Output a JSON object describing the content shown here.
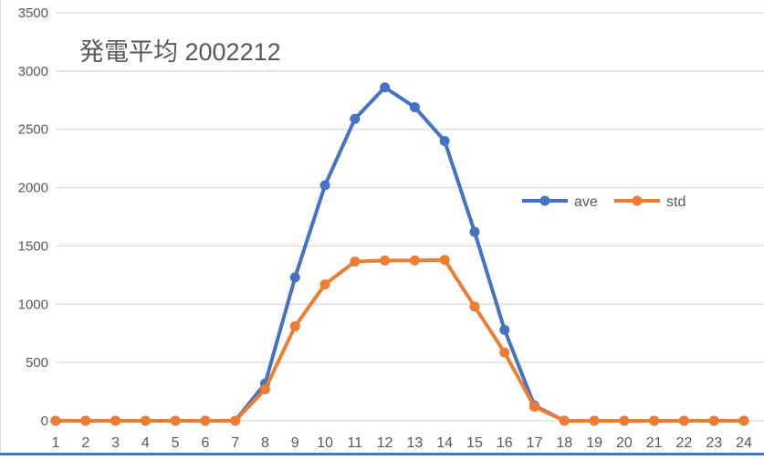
{
  "chart_data": {
    "type": "line",
    "title": "発電平均 2002212",
    "xlabel": "",
    "ylabel": "",
    "categories": [
      "1",
      "2",
      "3",
      "4",
      "5",
      "6",
      "7",
      "8",
      "9",
      "10",
      "11",
      "12",
      "13",
      "14",
      "15",
      "16",
      "17",
      "18",
      "19",
      "20",
      "21",
      "22",
      "23",
      "24"
    ],
    "series": [
      {
        "name": "ave",
        "color": "#4472c4",
        "values": [
          0,
          0,
          0,
          0,
          0,
          0,
          0,
          320,
          1230,
          2020,
          2590,
          2860,
          2690,
          2400,
          1620,
          780,
          130,
          0,
          0,
          0,
          0,
          0,
          0,
          0
        ]
      },
      {
        "name": "std",
        "color": "#ed7d31",
        "values": [
          0,
          0,
          0,
          0,
          0,
          0,
          0,
          270,
          810,
          1170,
          1365,
          1375,
          1375,
          1380,
          980,
          585,
          120,
          0,
          0,
          0,
          0,
          0,
          0,
          0
        ]
      }
    ],
    "ylim": [
      0,
      3500
    ],
    "yticks": [
      0,
      500,
      1000,
      1500,
      2000,
      2500,
      3000,
      3500
    ],
    "grid": true,
    "legend_position": "inside-right"
  }
}
